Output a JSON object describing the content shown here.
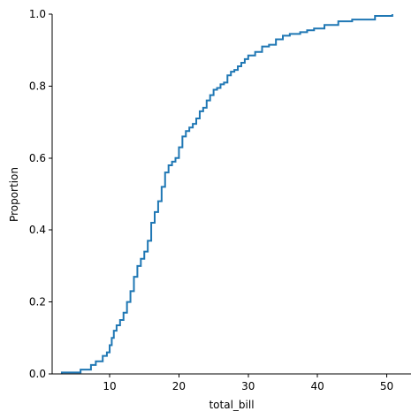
{
  "chart_data": {
    "type": "line",
    "style": "ecdf-step",
    "xlabel": "total_bill",
    "ylabel": "Proportion",
    "xlim": [
      1.7,
      53.5
    ],
    "ylim": [
      0.0,
      1.0
    ],
    "xticks": [
      10,
      20,
      30,
      40,
      50
    ],
    "yticks": [
      0.0,
      0.2,
      0.4,
      0.6,
      0.8,
      1.0
    ],
    "ytick_labels": [
      "0.0",
      "0.2",
      "0.4",
      "0.6",
      "0.8",
      "1.0"
    ],
    "grid": false,
    "color": "#1f77b4",
    "series": [
      {
        "x": [
          3.1,
          5.8,
          7.3,
          8.0,
          9.0,
          9.6,
          10.0,
          10.3,
          10.6,
          11.0,
          11.5,
          12.0,
          12.5,
          13.0,
          13.5,
          14.0,
          14.5,
          15.0,
          15.5,
          16.0,
          16.5,
          17.0,
          17.5,
          18.0,
          18.5,
          19.0,
          19.5,
          20.0,
          20.5,
          21.0,
          21.5,
          22.0,
          22.5,
          23.0,
          23.5,
          24.0,
          24.5,
          25.0,
          25.5,
          26.0,
          26.5,
          27.0,
          27.5,
          28.0,
          28.5,
          29.0,
          29.5,
          30.0,
          31.0,
          32.0,
          33.0,
          34.0,
          35.0,
          36.0,
          37.5,
          38.5,
          39.5,
          41.0,
          43.0,
          45.0,
          48.3,
          50.8
        ],
        "y": [
          0.004,
          0.012,
          0.025,
          0.035,
          0.05,
          0.06,
          0.08,
          0.1,
          0.12,
          0.135,
          0.15,
          0.17,
          0.2,
          0.23,
          0.27,
          0.3,
          0.32,
          0.34,
          0.37,
          0.42,
          0.45,
          0.48,
          0.52,
          0.56,
          0.58,
          0.59,
          0.6,
          0.63,
          0.66,
          0.675,
          0.685,
          0.695,
          0.71,
          0.73,
          0.74,
          0.76,
          0.775,
          0.79,
          0.795,
          0.805,
          0.81,
          0.83,
          0.84,
          0.845,
          0.855,
          0.865,
          0.875,
          0.885,
          0.895,
          0.91,
          0.915,
          0.93,
          0.94,
          0.945,
          0.95,
          0.955,
          0.96,
          0.97,
          0.98,
          0.985,
          0.995,
          1.0
        ]
      }
    ]
  }
}
